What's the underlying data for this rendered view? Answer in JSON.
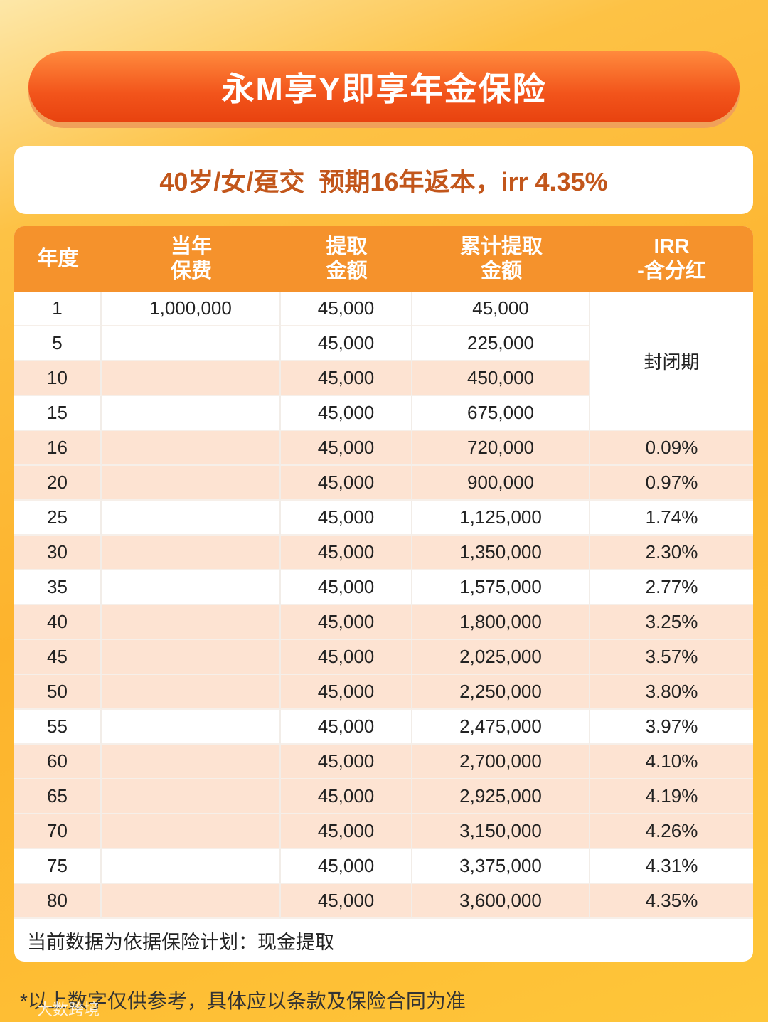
{
  "title": "永M享Y即享年金保险",
  "subtitle": "40岁/女/趸交  预期16年返本，irr 4.35%",
  "table": {
    "headers": [
      [
        "年度"
      ],
      [
        "当年",
        "保费"
      ],
      [
        "提取",
        "金额"
      ],
      [
        "累计提取",
        "金额"
      ],
      [
        "IRR",
        "-含分红"
      ]
    ],
    "closed_period": "封闭期",
    "rows": [
      [
        "1",
        "1,000,000",
        "45,000",
        "45,000",
        null
      ],
      [
        "5",
        null,
        "45,000",
        "225,000",
        null
      ],
      [
        "10",
        null,
        "45,000",
        "450,000",
        null
      ],
      [
        "15",
        null,
        "45,000",
        "675,000",
        null
      ],
      [
        "16",
        null,
        "45,000",
        "720,000",
        "0.09%"
      ],
      [
        "20",
        null,
        "45,000",
        "900,000",
        "0.97%"
      ],
      [
        "25",
        null,
        "45,000",
        "1,125,000",
        "1.74%"
      ],
      [
        "30",
        null,
        "45,000",
        "1,350,000",
        "2.30%"
      ],
      [
        "35",
        null,
        "45,000",
        "1,575,000",
        "2.77%"
      ],
      [
        "40",
        null,
        "45,000",
        "1,800,000",
        "3.25%"
      ],
      [
        "45",
        null,
        "45,000",
        "2,025,000",
        "3.57%"
      ],
      [
        "50",
        null,
        "45,000",
        "2,250,000",
        "3.80%"
      ],
      [
        "55",
        null,
        "45,000",
        "2,475,000",
        "3.97%"
      ],
      [
        "60",
        null,
        "45,000",
        "2,700,000",
        "4.10%"
      ],
      [
        "65",
        null,
        "45,000",
        "2,925,000",
        "4.19%"
      ],
      [
        "70",
        null,
        "45,000",
        "3,150,000",
        "4.26%"
      ],
      [
        "75",
        null,
        "45,000",
        "3,375,000",
        "4.31%"
      ],
      [
        "80",
        null,
        "45,000",
        "3,600,000",
        "4.35%"
      ]
    ],
    "note": "当前数据为依据保险计划：现金提取"
  },
  "footer": "*以上数字仅供参考，具体应以条款及保险合同为准",
  "watermark": "大数跨境"
}
